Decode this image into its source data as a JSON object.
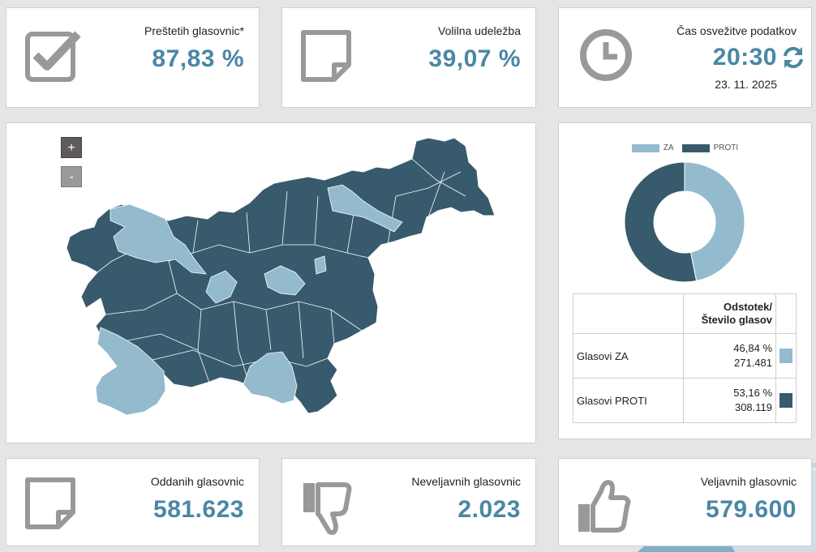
{
  "counted_ballots": {
    "label": "Preštetih glasovnic*",
    "value": "87,83 %",
    "icon": "checkbox-icon"
  },
  "turnout": {
    "label": "Volilna udeležba",
    "value": "39,07 %",
    "icon": "sticky-note-icon"
  },
  "refresh_time": {
    "label": "Čas osvežitve podatkov",
    "time": "20:30",
    "date": "23. 11. 2025",
    "icon": "clock-icon",
    "refresh_icon": "refresh-icon"
  },
  "map": {
    "zoom_in": "+",
    "zoom_out": "-",
    "colors": {
      "za": "#93bacd",
      "proti": "#385a6d"
    }
  },
  "chart_data": {
    "type": "pie",
    "variant": "donut",
    "legend_position": "top",
    "series": [
      {
        "name": "ZA",
        "value": 46.84,
        "color": "#93bacd"
      },
      {
        "name": "PROTI",
        "value": 53.16,
        "color": "#385a6d"
      }
    ]
  },
  "results_table": {
    "header": "Odstotek/ Število glasov",
    "rows": [
      {
        "name": "Glasovi ZA",
        "percent": "46,84 %",
        "votes": "271.481",
        "color": "#93bacd"
      },
      {
        "name": "Glasovi PROTI",
        "percent": "53,16 %",
        "votes": "308.119",
        "color": "#385a6d"
      }
    ]
  },
  "cast_ballots": {
    "label": "Oddanih glasovnic",
    "value": "581.623",
    "icon": "sticky-note-icon"
  },
  "invalid_ballots": {
    "label": "Neveljavnih glasovnic",
    "value": "2.023",
    "icon": "thumbs-down-icon"
  },
  "valid_ballots": {
    "label": "Veljavnih glasovnic",
    "value": "579.600",
    "icon": "thumbs-up-icon"
  }
}
